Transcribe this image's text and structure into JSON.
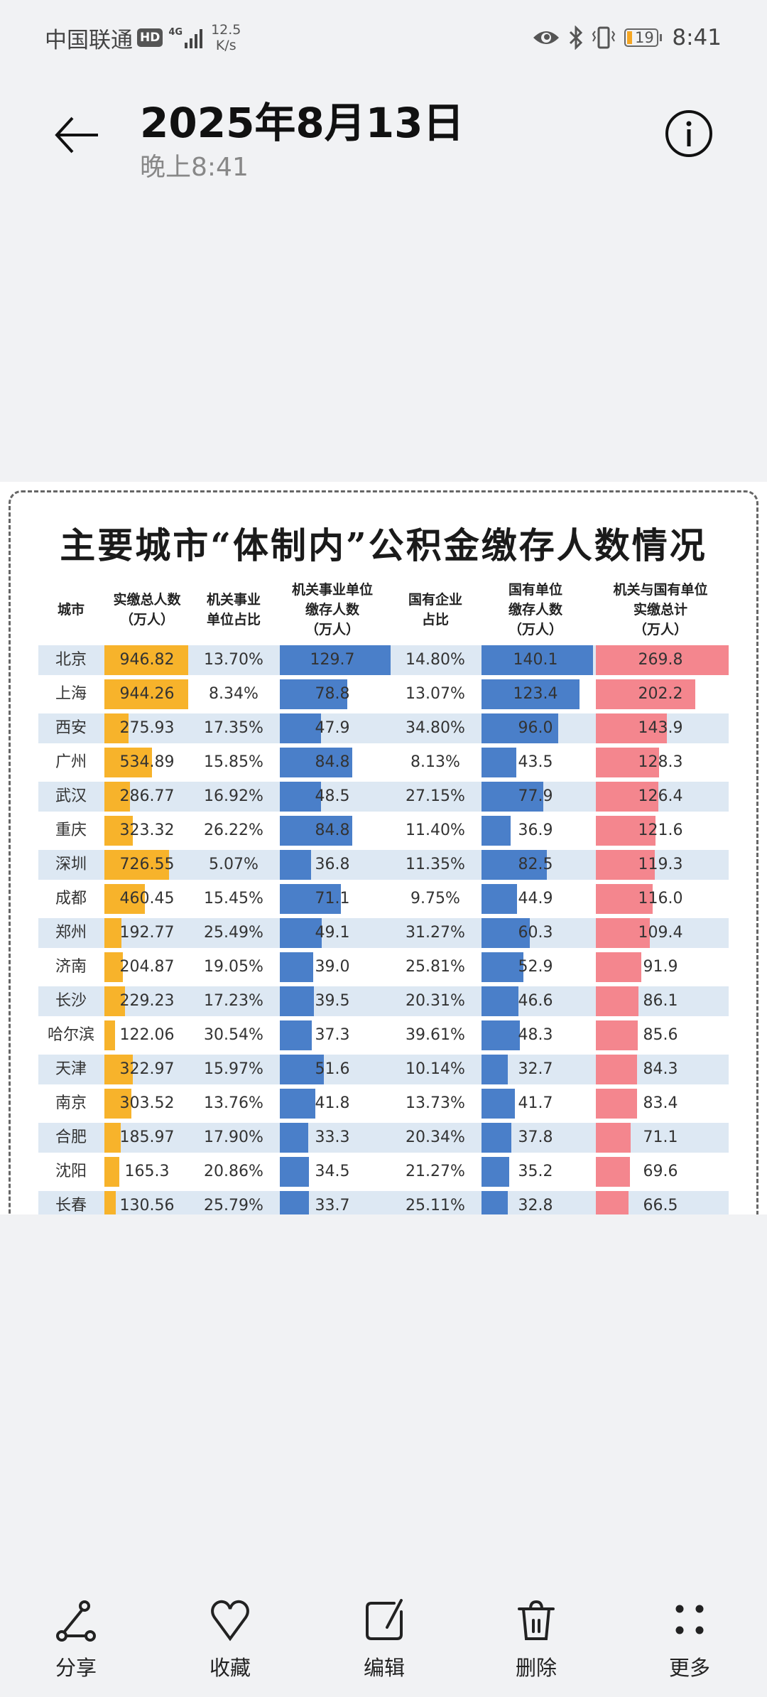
{
  "status_bar": {
    "carrier": "中国联通",
    "hd_badge": "HD",
    "network": "4G",
    "speed_value": "12.5",
    "speed_unit": "K/s",
    "battery": "19",
    "time": "8:41",
    "battery_color": "#f5a623"
  },
  "header": {
    "title": "2025年8月13日",
    "subtitle": "晚上8:41"
  },
  "photo": {
    "title": "主要城市“体制内”公积金缴存人数情况",
    "columns": [
      [
        "城市"
      ],
      [
        "实缴总人数",
        "（万人）"
      ],
      [
        "机关事业",
        "单位占比"
      ],
      [
        "机关事业单位",
        "缴存人数",
        "（万人）"
      ],
      [
        "国有企业",
        "占比"
      ],
      [
        "国有单位",
        "缴存人数",
        "（万人）"
      ],
      [
        "机关与国有单位",
        "实缴总计",
        "（万人）"
      ]
    ],
    "colors": {
      "total": "#f7b32b",
      "blue": "#4a7fc9",
      "pink": "#f4868e",
      "row_alt": "#dde8f3"
    },
    "rows": [
      [
        "北京",
        "946.82",
        "13.70%",
        "129.7",
        "14.80%",
        "140.1",
        "269.8"
      ],
      [
        "上海",
        "944.26",
        "8.34%",
        "78.8",
        "13.07%",
        "123.4",
        "202.2"
      ],
      [
        "西安",
        "275.93",
        "17.35%",
        "47.9",
        "34.80%",
        "96.0",
        "143.9"
      ],
      [
        "广州",
        "534.89",
        "15.85%",
        "84.8",
        "8.13%",
        "43.5",
        "128.3"
      ],
      [
        "武汉",
        "286.77",
        "16.92%",
        "48.5",
        "27.15%",
        "77.9",
        "126.4"
      ],
      [
        "重庆",
        "323.32",
        "26.22%",
        "84.8",
        "11.40%",
        "36.9",
        "121.6"
      ],
      [
        "深圳",
        "726.55",
        "5.07%",
        "36.8",
        "11.35%",
        "82.5",
        "119.3"
      ],
      [
        "成都",
        "460.45",
        "15.45%",
        "71.1",
        "9.75%",
        "44.9",
        "116.0"
      ],
      [
        "郑州",
        "192.77",
        "25.49%",
        "49.1",
        "31.27%",
        "60.3",
        "109.4"
      ],
      [
        "济南",
        "204.87",
        "19.05%",
        "39.0",
        "25.81%",
        "52.9",
        "91.9"
      ],
      [
        "长沙",
        "229.23",
        "17.23%",
        "39.5",
        "20.31%",
        "46.6",
        "86.1"
      ],
      [
        "哈尔滨",
        "122.06",
        "30.54%",
        "37.3",
        "39.61%",
        "48.3",
        "85.6"
      ],
      [
        "天津",
        "322.97",
        "15.97%",
        "51.6",
        "10.14%",
        "32.7",
        "84.3"
      ],
      [
        "南京",
        "303.52",
        "13.76%",
        "41.8",
        "13.73%",
        "41.7",
        "83.4"
      ],
      [
        "合肥",
        "185.97",
        "17.90%",
        "33.3",
        "20.34%",
        "37.8",
        "71.1"
      ],
      [
        "沈阳",
        "165.3",
        "20.86%",
        "34.5",
        "21.27%",
        "35.2",
        "69.6"
      ],
      [
        "长春",
        "130.56",
        "25.79%",
        "33.7",
        "25.11%",
        "32.8",
        "66.5"
      ]
    ]
  },
  "toolbar": {
    "items": [
      {
        "label": "分享",
        "icon": "share-icon"
      },
      {
        "label": "收藏",
        "icon": "heart-icon"
      },
      {
        "label": "编辑",
        "icon": "edit-icon"
      },
      {
        "label": "删除",
        "icon": "trash-icon"
      },
      {
        "label": "更多",
        "icon": "more-icon"
      }
    ]
  }
}
